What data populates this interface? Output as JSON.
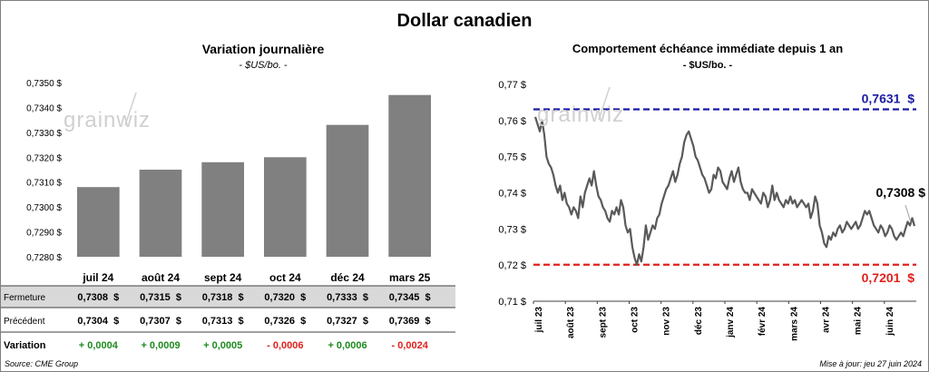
{
  "title": "Dollar canadien",
  "watermark": "grainwiz",
  "footer": {
    "source": "Source: CME Group",
    "updated": "Mise à jour: jeu 27 juin 2024"
  },
  "colors": {
    "bar": "#808080",
    "line": "#595959",
    "max_line": "#1a1aa6",
    "min_line": "#e0201b",
    "positive": "#1e8a1e",
    "negative": "#e0201b",
    "row_shade": "#d9d9d9"
  },
  "chart_data": [
    {
      "type": "bar",
      "title": "Variation  journalière",
      "subtitle": "- $US/bo. -",
      "categories": [
        "juil 24",
        "août 24",
        "sept 24",
        "oct 24",
        "déc 24",
        "mars 25"
      ],
      "values": [
        0.7308,
        0.7315,
        0.7318,
        0.732,
        0.7333,
        0.7345
      ],
      "ylim": [
        0.728,
        0.735
      ],
      "yticks": [
        "0,7280 $",
        "0,7290 $",
        "0,7300 $",
        "0,7310 $",
        "0,7320 $",
        "0,7330 $",
        "0,7340 $",
        "0,7350 $"
      ],
      "grid": false,
      "table": {
        "rows": [
          {
            "label": "Fermeture",
            "cells": [
              "0,7308  $",
              "0,7315  $",
              "0,7318  $",
              "0,7320  $",
              "0,7333  $",
              "0,7345  $"
            ]
          },
          {
            "label": "Précédent",
            "cells": [
              "0,7304  $",
              "0,7307  $",
              "0,7313  $",
              "0,7326  $",
              "0,7327  $",
              "0,7369  $"
            ]
          },
          {
            "label": "Variation",
            "cells": [
              "+ 0,0004",
              "+ 0,0009",
              "+ 0,0005",
              "- 0,0006",
              "+ 0,0006",
              "- 0,0024"
            ]
          }
        ]
      }
    },
    {
      "type": "line",
      "title": "Comportement échéance immédiate depuis 1 an",
      "subtitle": "- $US/bo. -",
      "ylim": [
        0.71,
        0.77
      ],
      "yticks": [
        "0,71 $",
        "0,72 $",
        "0,73 $",
        "0,74 $",
        "0,75 $",
        "0,76 $",
        "0,77 $"
      ],
      "xticks": [
        "juil 23",
        "août 23",
        "sept 23",
        "oct 23",
        "nov 23",
        "déc 23",
        "janv 24",
        "févr 24",
        "mars 24",
        "avr 24",
        "mai 24",
        "juin 24"
      ],
      "grid": false,
      "max": {
        "value": 0.7631,
        "label": "0,7631  $"
      },
      "min": {
        "value": 0.7201,
        "label": "0,7201  $"
      },
      "last_label": "0,7308 $",
      "series": [
        {
          "values": [
            0.761,
            0.759,
            0.757,
            0.76,
            0.756,
            0.75,
            0.748,
            0.747,
            0.745,
            0.742,
            0.74,
            0.742,
            0.738,
            0.74,
            0.737,
            0.736,
            0.734,
            0.736,
            0.735,
            0.733,
            0.739,
            0.736,
            0.74,
            0.742,
            0.744,
            0.742,
            0.746,
            0.742,
            0.739,
            0.738,
            0.736,
            0.735,
            0.733,
            0.732,
            0.735,
            0.734,
            0.736,
            0.734,
            0.738,
            0.736,
            0.731,
            0.729,
            0.73,
            0.725,
            0.722,
            0.7201,
            0.723,
            0.721,
            0.725,
            0.731,
            0.727,
            0.729,
            0.731,
            0.73,
            0.733,
            0.734,
            0.737,
            0.739,
            0.741,
            0.742,
            0.744,
            0.746,
            0.743,
            0.745,
            0.748,
            0.75,
            0.754,
            0.756,
            0.757,
            0.755,
            0.753,
            0.75,
            0.749,
            0.747,
            0.745,
            0.744,
            0.742,
            0.74,
            0.741,
            0.745,
            0.744,
            0.747,
            0.746,
            0.743,
            0.742,
            0.741,
            0.744,
            0.746,
            0.743,
            0.745,
            0.747,
            0.743,
            0.741,
            0.74,
            0.74,
            0.738,
            0.741,
            0.74,
            0.739,
            0.738,
            0.737,
            0.74,
            0.739,
            0.736,
            0.738,
            0.742,
            0.738,
            0.74,
            0.738,
            0.737,
            0.736,
            0.738,
            0.737,
            0.739,
            0.737,
            0.738,
            0.736,
            0.737,
            0.738,
            0.737,
            0.736,
            0.737,
            0.733,
            0.735,
            0.739,
            0.737,
            0.731,
            0.729,
            0.726,
            0.725,
            0.728,
            0.727,
            0.729,
            0.728,
            0.73,
            0.731,
            0.729,
            0.73,
            0.732,
            0.731,
            0.73,
            0.731,
            0.732,
            0.73,
            0.731,
            0.733,
            0.735,
            0.734,
            0.735,
            0.733,
            0.731,
            0.73,
            0.729,
            0.731,
            0.73,
            0.728,
            0.729,
            0.731,
            0.73,
            0.728,
            0.727,
            0.728,
            0.729,
            0.728,
            0.73,
            0.732,
            0.731,
            0.733,
            0.7308
          ]
        }
      ]
    }
  ]
}
